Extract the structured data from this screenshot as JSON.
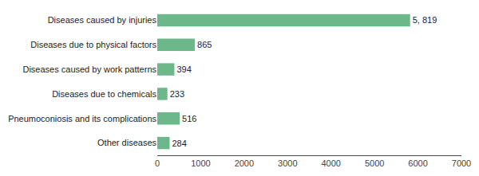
{
  "chart_data": {
    "type": "bar",
    "orientation": "horizontal",
    "categories": [
      "Other diseases",
      "Pneumoconiosis and its complications",
      "Diseases due to chemicals",
      "Diseases caused by work patterns",
      "Diseases due to physical factors",
      "Diseases caused by injuries"
    ],
    "values": [
      284,
      516,
      233,
      394,
      865,
      5819
    ],
    "value_labels": [
      "284",
      "516",
      "233",
      "394",
      "865",
      "5, 819"
    ],
    "data_labels": true,
    "color": "#6db88a",
    "xlim": [
      0,
      7000
    ],
    "xticks": [
      0,
      1000,
      2000,
      3000,
      4000,
      5000,
      6000,
      7000
    ],
    "grid": false
  }
}
